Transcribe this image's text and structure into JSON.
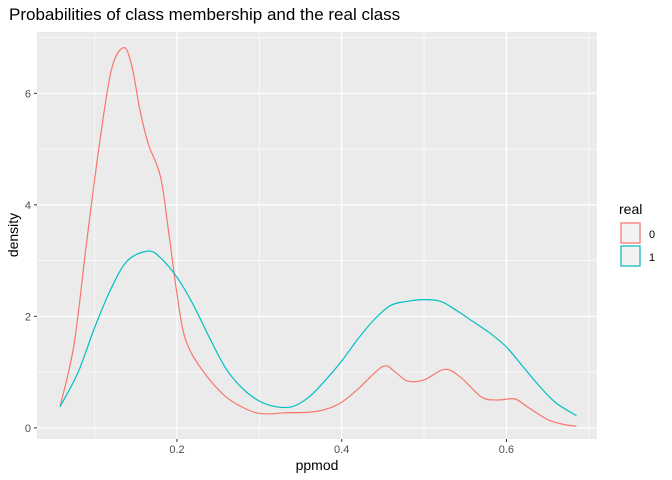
{
  "chart_data": {
    "type": "line",
    "title": "Probabilities of class membership and the real class",
    "xlabel": "ppmod",
    "ylabel": "density",
    "xlim": [
      0.03,
      0.71
    ],
    "ylim": [
      -0.2,
      7.1
    ],
    "x_ticks": [
      0.2,
      0.4,
      0.6
    ],
    "x_tick_labels": [
      "0.2",
      "0.4",
      "0.6"
    ],
    "y_ticks": [
      0,
      2,
      4,
      6
    ],
    "y_tick_labels": [
      "0",
      "2",
      "4",
      "6"
    ],
    "grid": true,
    "legend": {
      "title": "real",
      "placement": "right"
    },
    "series": [
      {
        "name": "0",
        "color": "#F8766D",
        "points": [
          [
            0.058,
            0.38
          ],
          [
            0.075,
            1.5
          ],
          [
            0.09,
            3.3
          ],
          [
            0.105,
            5.0
          ],
          [
            0.12,
            6.4
          ],
          [
            0.135,
            6.82
          ],
          [
            0.145,
            6.5
          ],
          [
            0.155,
            5.7
          ],
          [
            0.165,
            5.1
          ],
          [
            0.18,
            4.5
          ],
          [
            0.19,
            3.5
          ],
          [
            0.2,
            2.4
          ],
          [
            0.21,
            1.6
          ],
          [
            0.23,
            1.05
          ],
          [
            0.26,
            0.55
          ],
          [
            0.29,
            0.3
          ],
          [
            0.31,
            0.25
          ],
          [
            0.33,
            0.27
          ],
          [
            0.36,
            0.28
          ],
          [
            0.38,
            0.33
          ],
          [
            0.4,
            0.46
          ],
          [
            0.42,
            0.7
          ],
          [
            0.45,
            1.1
          ],
          [
            0.465,
            1.0
          ],
          [
            0.48,
            0.84
          ],
          [
            0.5,
            0.86
          ],
          [
            0.525,
            1.05
          ],
          [
            0.545,
            0.9
          ],
          [
            0.57,
            0.55
          ],
          [
            0.59,
            0.5
          ],
          [
            0.61,
            0.52
          ],
          [
            0.625,
            0.38
          ],
          [
            0.65,
            0.15
          ],
          [
            0.67,
            0.06
          ],
          [
            0.685,
            0.03
          ]
        ]
      },
      {
        "name": "1",
        "color": "#00BFC4",
        "points": [
          [
            0.058,
            0.38
          ],
          [
            0.08,
            1.0
          ],
          [
            0.1,
            1.8
          ],
          [
            0.12,
            2.5
          ],
          [
            0.14,
            3.0
          ],
          [
            0.165,
            3.17
          ],
          [
            0.18,
            3.05
          ],
          [
            0.2,
            2.7
          ],
          [
            0.22,
            2.2
          ],
          [
            0.24,
            1.6
          ],
          [
            0.26,
            1.05
          ],
          [
            0.28,
            0.7
          ],
          [
            0.3,
            0.48
          ],
          [
            0.32,
            0.38
          ],
          [
            0.34,
            0.38
          ],
          [
            0.36,
            0.55
          ],
          [
            0.38,
            0.85
          ],
          [
            0.4,
            1.2
          ],
          [
            0.42,
            1.6
          ],
          [
            0.44,
            1.95
          ],
          [
            0.46,
            2.2
          ],
          [
            0.48,
            2.27
          ],
          [
            0.5,
            2.3
          ],
          [
            0.52,
            2.27
          ],
          [
            0.54,
            2.1
          ],
          [
            0.56,
            1.9
          ],
          [
            0.58,
            1.7
          ],
          [
            0.6,
            1.45
          ],
          [
            0.62,
            1.1
          ],
          [
            0.64,
            0.75
          ],
          [
            0.66,
            0.45
          ],
          [
            0.685,
            0.22
          ]
        ]
      }
    ]
  }
}
